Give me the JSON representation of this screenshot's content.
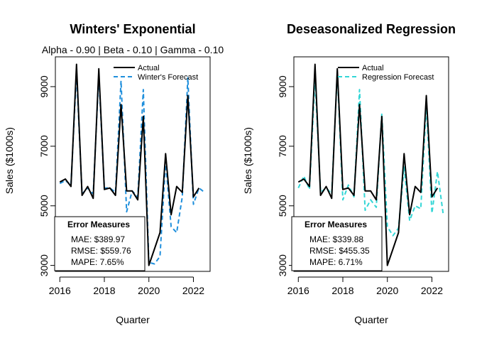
{
  "chart_data": [
    {
      "type": "line",
      "title": "Winters' Exponential",
      "subtitle": "Alpha - 0.90 | Beta - 0.10 | Gamma - 0.10",
      "xlabel": "Quarter",
      "ylabel": "Sales ($1000s)",
      "xlim": [
        2015.8,
        2022.75
      ],
      "ylim": [
        2800,
        10000
      ],
      "xticks": [
        2016,
        2018,
        2020,
        2022
      ],
      "yticks": [
        3000,
        5000,
        7000,
        9000
      ],
      "legend_position": "top-right",
      "series": [
        {
          "name": "Actual",
          "color": "#000000",
          "style": "solid",
          "x": [
            2016.0,
            2016.25,
            2016.5,
            2016.75,
            2017.0,
            2017.25,
            2017.5,
            2017.75,
            2018.0,
            2018.25,
            2018.5,
            2018.75,
            2019.0,
            2019.25,
            2019.5,
            2019.75,
            2020.0,
            2020.25,
            2020.5,
            2020.75,
            2021.0,
            2021.25,
            2021.5,
            2021.75,
            2022.0,
            2022.25
          ],
          "values": [
            5800,
            5900,
            5650,
            9750,
            5350,
            5650,
            5250,
            9600,
            5550,
            5600,
            5350,
            8400,
            5500,
            5500,
            5200,
            8000,
            3000,
            3550,
            4100,
            6750,
            4700,
            5650,
            5450,
            8700,
            5300,
            5600
          ]
        },
        {
          "name": "Winter's Forecast",
          "color": "#1f8fdc",
          "style": "dashed",
          "x": [
            2016.0,
            2016.25,
            2016.5,
            2016.75,
            2017.0,
            2017.25,
            2017.5,
            2017.75,
            2018.0,
            2018.25,
            2018.5,
            2018.75,
            2019.0,
            2019.25,
            2019.5,
            2019.75,
            2020.0,
            2020.25,
            2020.5,
            2020.75,
            2021.0,
            2021.25,
            2021.5,
            2021.75,
            2022.0,
            2022.25,
            2022.5
          ],
          "values": [
            5750,
            5850,
            5700,
            9500,
            5400,
            5600,
            5400,
            9400,
            5600,
            5600,
            5450,
            9200,
            4800,
            5500,
            5300,
            8900,
            3100,
            3050,
            3300,
            6500,
            4300,
            4100,
            5300,
            9300,
            5050,
            5600,
            5450
          ]
        }
      ],
      "error_box": {
        "title": "Error Measures",
        "lines": [
          "MAE: $389.97",
          "RMSE: $559.76",
          "MAPE: 7.65%"
        ]
      }
    },
    {
      "type": "line",
      "title": "Deseasonalized Regression",
      "subtitle": "",
      "xlabel": "Quarter",
      "ylabel": "Sales ($1000s)",
      "xlim": [
        2015.8,
        2022.75
      ],
      "ylim": [
        2800,
        10000
      ],
      "xticks": [
        2016,
        2018,
        2020,
        2022
      ],
      "yticks": [
        3000,
        5000,
        7000,
        9000
      ],
      "legend_position": "top-right",
      "series": [
        {
          "name": "Actual",
          "color": "#000000",
          "style": "solid",
          "x": [
            2016.0,
            2016.25,
            2016.5,
            2016.75,
            2017.0,
            2017.25,
            2017.5,
            2017.75,
            2018.0,
            2018.25,
            2018.5,
            2018.75,
            2019.0,
            2019.25,
            2019.5,
            2019.75,
            2020.0,
            2020.25,
            2020.5,
            2020.75,
            2021.0,
            2021.25,
            2021.5,
            2021.75,
            2022.0,
            2022.25
          ],
          "values": [
            5800,
            5900,
            5650,
            9750,
            5350,
            5650,
            5250,
            9600,
            5550,
            5600,
            5350,
            8400,
            5500,
            5500,
            5200,
            8000,
            3000,
            3550,
            4100,
            6750,
            4700,
            5650,
            5450,
            8700,
            5300,
            5600
          ]
        },
        {
          "name": "Regression Forecast",
          "color": "#33d6d6",
          "style": "dashed",
          "x": [
            2016.0,
            2016.25,
            2016.5,
            2016.75,
            2017.0,
            2017.25,
            2017.5,
            2017.75,
            2018.0,
            2018.25,
            2018.5,
            2018.75,
            2019.0,
            2019.25,
            2019.5,
            2019.75,
            2020.0,
            2020.25,
            2020.5,
            2020.75,
            2021.0,
            2021.25,
            2021.5,
            2021.75,
            2022.0,
            2022.25,
            2022.5
          ],
          "values": [
            5600,
            6000,
            5550,
            9300,
            5450,
            5600,
            5400,
            9500,
            5200,
            5700,
            5300,
            8900,
            4850,
            5200,
            4950,
            8100,
            4300,
            4000,
            4250,
            6300,
            4500,
            5000,
            4900,
            8400,
            4750,
            6150,
            4750
          ]
        }
      ],
      "error_box": {
        "title": "Error Measures",
        "lines": [
          "MAE: $339.88",
          "RMSE: $455.35",
          "MAPE: 6.71%"
        ]
      }
    }
  ]
}
